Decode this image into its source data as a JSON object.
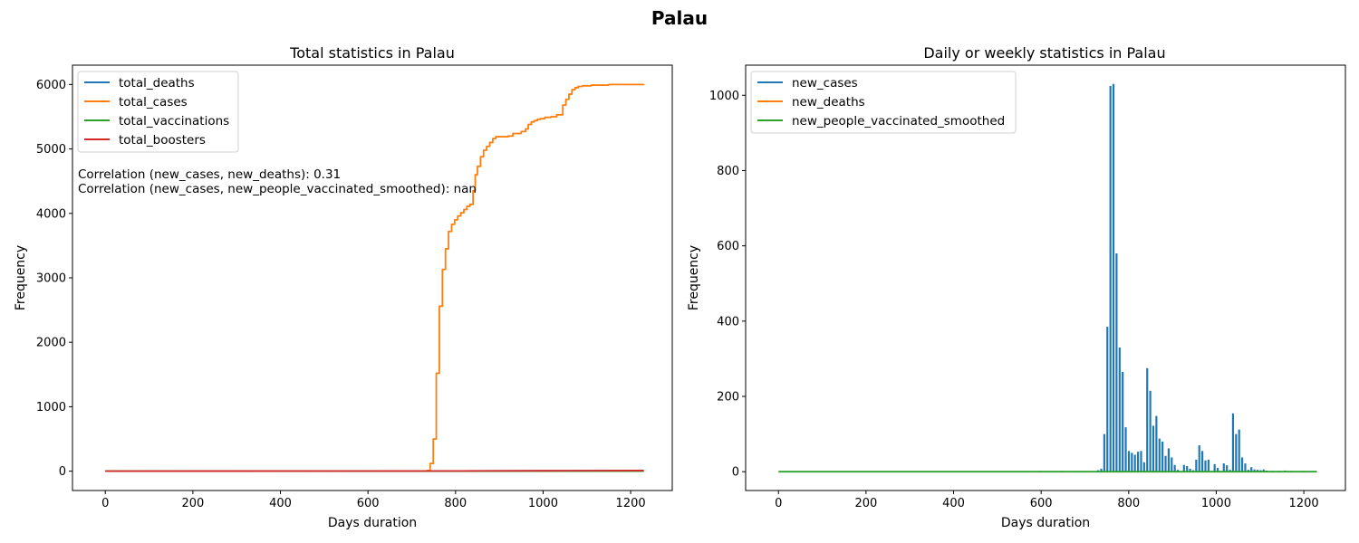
{
  "figure": {
    "suptitle": "Palau"
  },
  "chart_data": [
    {
      "type": "line",
      "title": "Total statistics in Palau",
      "xlabel": "Days duration",
      "ylabel": "Frequency",
      "xlim": [
        -75,
        1295
      ],
      "ylim": [
        -300,
        6300
      ],
      "xticks": [
        0,
        200,
        400,
        600,
        800,
        1000,
        1200
      ],
      "yticks": [
        0,
        1000,
        2000,
        3000,
        4000,
        5000,
        6000
      ],
      "legend_position": "upper-left",
      "annotations": [
        "Correlation (new_cases, new_deaths): 0.31",
        "Correlation (new_cases, new_people_vaccinated_smoothed): nan"
      ],
      "series": [
        {
          "name": "total_deaths",
          "color": "#1f77b4",
          "step": false,
          "points": [
            [
              0,
              0
            ],
            [
              740,
              0
            ],
            [
              780,
              3
            ],
            [
              1000,
              7
            ],
            [
              1230,
              9
            ]
          ]
        },
        {
          "name": "total_cases",
          "color": "#ff7f0e",
          "step": true,
          "points": [
            [
              0,
              0
            ],
            [
              590,
              2
            ],
            [
              640,
              4
            ],
            [
              735,
              10
            ],
            [
              742,
              120
            ],
            [
              749,
              500
            ],
            [
              756,
              1520
            ],
            [
              763,
              2560
            ],
            [
              770,
              3130
            ],
            [
              777,
              3450
            ],
            [
              784,
              3720
            ],
            [
              791,
              3830
            ],
            [
              798,
              3900
            ],
            [
              805,
              3960
            ],
            [
              812,
              4010
            ],
            [
              819,
              4060
            ],
            [
              826,
              4110
            ],
            [
              833,
              4140
            ],
            [
              840,
              4350
            ],
            [
              845,
              4600
            ],
            [
              850,
              4730
            ],
            [
              857,
              4880
            ],
            [
              864,
              4980
            ],
            [
              871,
              5040
            ],
            [
              878,
              5100
            ],
            [
              885,
              5160
            ],
            [
              892,
              5190
            ],
            [
              920,
              5200
            ],
            [
              931,
              5240
            ],
            [
              950,
              5270
            ],
            [
              960,
              5310
            ],
            [
              966,
              5380
            ],
            [
              973,
              5420
            ],
            [
              980,
              5440
            ],
            [
              987,
              5460
            ],
            [
              994,
              5470
            ],
            [
              1004,
              5490
            ],
            [
              1018,
              5500
            ],
            [
              1031,
              5530
            ],
            [
              1045,
              5680
            ],
            [
              1052,
              5770
            ],
            [
              1059,
              5850
            ],
            [
              1066,
              5920
            ],
            [
              1073,
              5950
            ],
            [
              1080,
              5970
            ],
            [
              1090,
              5980
            ],
            [
              1110,
              5990
            ],
            [
              1150,
              6000
            ],
            [
              1230,
              6005
            ]
          ]
        },
        {
          "name": "total_vaccinations",
          "color": "#2ca02c",
          "step": false,
          "points": [
            [
              0,
              0
            ],
            [
              1230,
              0
            ]
          ]
        },
        {
          "name": "total_boosters",
          "color": "#d62728",
          "step": false,
          "points": [
            [
              0,
              0
            ],
            [
              700,
              2
            ],
            [
              1000,
              6
            ],
            [
              1230,
              10
            ]
          ]
        }
      ]
    },
    {
      "type": "line",
      "title": "Daily or weekly statistics in Palau",
      "xlabel": "Days duration",
      "ylabel": "Frequency",
      "xlim": [
        -75,
        1295
      ],
      "ylim": [
        -50,
        1080
      ],
      "xticks": [
        0,
        200,
        400,
        600,
        800,
        1000,
        1200
      ],
      "yticks": [
        0,
        200,
        400,
        600,
        800,
        1000
      ],
      "legend_position": "upper-left",
      "series": [
        {
          "name": "new_cases",
          "color": "#1f77b4",
          "style": "weekly-spikes",
          "points": [
            [
              596,
              2
            ],
            [
              623,
              1
            ],
            [
              644,
              2
            ],
            [
              728,
              4
            ],
            [
              735,
              8
            ],
            [
              742,
              100
            ],
            [
              749,
              385
            ],
            [
              756,
              1025
            ],
            [
              763,
              1030
            ],
            [
              770,
              580
            ],
            [
              777,
              330
            ],
            [
              784,
              265
            ],
            [
              791,
              118
            ],
            [
              798,
              55
            ],
            [
              805,
              50
            ],
            [
              812,
              45
            ],
            [
              819,
              53
            ],
            [
              826,
              55
            ],
            [
              833,
              25
            ],
            [
              840,
              275
            ],
            [
              847,
              215
            ],
            [
              854,
              122
            ],
            [
              861,
              148
            ],
            [
              868,
              88
            ],
            [
              875,
              80
            ],
            [
              882,
              42
            ],
            [
              889,
              62
            ],
            [
              896,
              38
            ],
            [
              903,
              18
            ],
            [
              910,
              5
            ],
            [
              924,
              18
            ],
            [
              931,
              15
            ],
            [
              938,
              8
            ],
            [
              945,
              4
            ],
            [
              952,
              32
            ],
            [
              959,
              70
            ],
            [
              966,
              55
            ],
            [
              973,
              30
            ],
            [
              980,
              32
            ],
            [
              987,
              2
            ],
            [
              994,
              20
            ],
            [
              1001,
              10
            ],
            [
              1008,
              2
            ],
            [
              1015,
              22
            ],
            [
              1022,
              17
            ],
            [
              1029,
              5
            ],
            [
              1036,
              155
            ],
            [
              1043,
              100
            ],
            [
              1050,
              112
            ],
            [
              1057,
              38
            ],
            [
              1064,
              22
            ],
            [
              1071,
              5
            ],
            [
              1078,
              12
            ],
            [
              1085,
              6
            ],
            [
              1092,
              5
            ],
            [
              1099,
              4
            ],
            [
              1106,
              6
            ],
            [
              1113,
              3
            ],
            [
              1127,
              2
            ],
            [
              1141,
              2
            ],
            [
              1155,
              3
            ],
            [
              1169,
              2
            ],
            [
              1183,
              1
            ],
            [
              1197,
              2
            ],
            [
              1211,
              1
            ]
          ]
        },
        {
          "name": "new_deaths",
          "color": "#ff7f0e",
          "style": "spikes",
          "points": [
            [
              770,
              2
            ],
            [
              800,
              2
            ],
            [
              980,
              1
            ]
          ]
        },
        {
          "name": "new_people_vaccinated_smoothed",
          "color": "#2ca02c",
          "style": "line",
          "points": [
            [
              0,
              0
            ],
            [
              1230,
              0
            ]
          ]
        }
      ]
    }
  ]
}
